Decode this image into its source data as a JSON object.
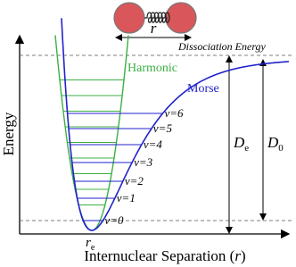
{
  "molecule": {
    "bond_label": "r"
  },
  "dissociation_label": "Dissociation Energy",
  "harmonic_label": "Harmonic",
  "morse_label": "Morse",
  "levels": [
    "v=0",
    "v=1",
    "v=2",
    "v=3",
    "v=4",
    "v=5",
    "v=6"
  ],
  "y_axis_label": "Energy",
  "x_axis_label": {
    "before": "Internuclear Separation (",
    "symbol": "r",
    "after": ")"
  },
  "r_e": {
    "main": "r",
    "sub": "e"
  },
  "D_e": {
    "main": "D",
    "sub": "e"
  },
  "D_0": {
    "main": "D",
    "sub": "0"
  }
}
